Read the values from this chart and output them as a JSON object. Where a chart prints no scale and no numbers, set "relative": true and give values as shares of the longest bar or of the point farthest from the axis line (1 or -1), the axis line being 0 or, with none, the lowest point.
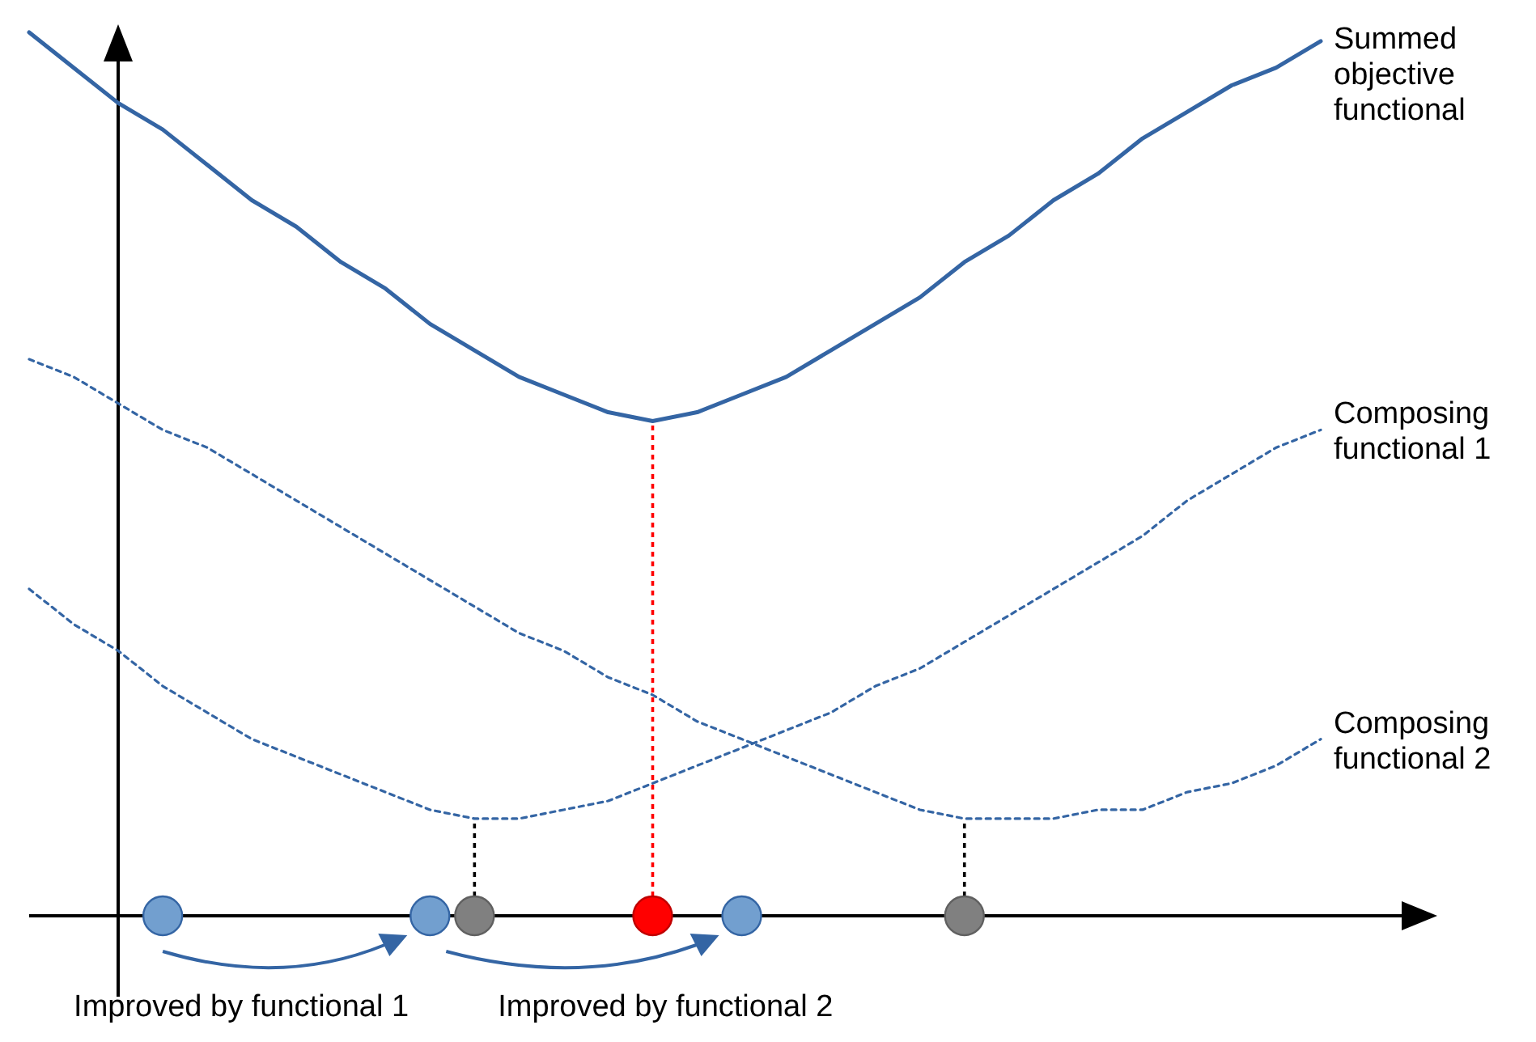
{
  "chart_data": {
    "type": "line",
    "relative": true,
    "categories": [
      null,
      null,
      null,
      null,
      null,
      null,
      null,
      null,
      null,
      null,
      null,
      null,
      null,
      null,
      null,
      null,
      null,
      null,
      null,
      null,
      null,
      null,
      null,
      null,
      null,
      null,
      null,
      null,
      null,
      null
    ],
    "series": [
      {
        "name": "Summed objective functional",
        "color": "#3465a4",
        "line_style": "solid",
        "values": [
          1.0,
          0.96,
          0.92,
          0.89,
          0.85,
          0.81,
          0.78,
          0.74,
          0.71,
          0.67,
          0.64,
          0.61,
          0.59,
          0.57,
          0.56,
          0.57,
          0.59,
          0.61,
          0.64,
          0.67,
          0.7,
          0.74,
          0.77,
          0.81,
          0.84,
          0.88,
          0.91,
          0.94,
          0.96,
          0.99
        ]
      },
      {
        "name": "Composing functional 1",
        "color": "#3465a4",
        "line_style": "dotted",
        "values": [
          0.37,
          0.33,
          0.3,
          0.26,
          0.23,
          0.2,
          0.18,
          0.16,
          0.14,
          0.12,
          0.11,
          0.11,
          0.12,
          0.13,
          0.15,
          0.17,
          0.19,
          0.21,
          0.23,
          0.26,
          0.28,
          0.31,
          0.34,
          0.37,
          0.4,
          0.43,
          0.47,
          0.5,
          0.53,
          0.55
        ]
      },
      {
        "name": "Composing functional 2",
        "color": "#3465a4",
        "line_style": "dotted",
        "values": [
          0.63,
          0.61,
          0.58,
          0.55,
          0.53,
          0.5,
          0.47,
          0.44,
          0.41,
          0.38,
          0.35,
          0.32,
          0.3,
          0.27,
          0.25,
          0.22,
          0.2,
          0.18,
          0.16,
          0.14,
          0.12,
          0.11,
          0.11,
          0.11,
          0.12,
          0.12,
          0.14,
          0.15,
          0.17,
          0.2
        ]
      }
    ],
    "annotations": [
      "Improved by functional 1",
      "Improved by functional 2"
    ]
  }
}
